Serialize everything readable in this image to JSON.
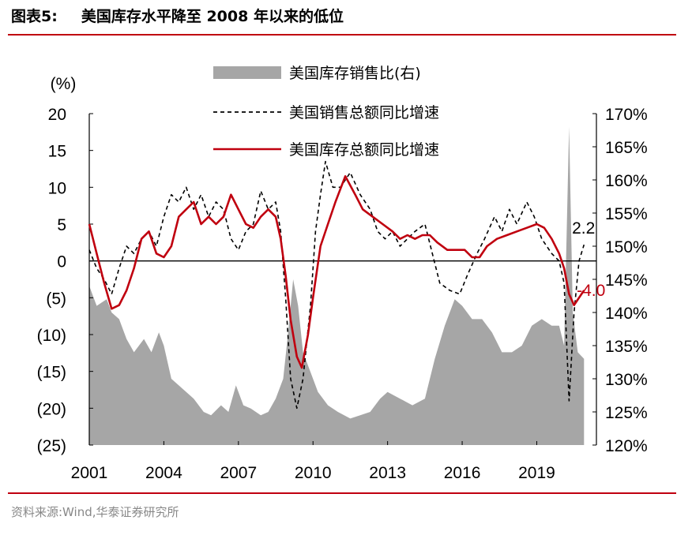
{
  "figure": {
    "title_prefix": "图表5:",
    "title": "美国库存水平降至 2008 年以来的低位",
    "source": "资料来源:Wind,华泰证券研究所"
  },
  "colors": {
    "rule": "#c0000f",
    "ratio_area": "#a6a6a6",
    "sales_line": "#000000",
    "inventory_line": "#c0000f",
    "axis": "#000000"
  },
  "chart_data": {
    "type": "line",
    "title": "",
    "left_axis": {
      "unit_label": "(%)",
      "min": -25,
      "max": 20,
      "ticks": [
        20,
        15,
        10,
        5,
        0,
        -5,
        -10,
        -15,
        -20,
        -25
      ],
      "tick_labels": [
        "20",
        "15",
        "10",
        "5",
        "0",
        "(5)",
        "(10)",
        "(15)",
        "(20)",
        "(25)"
      ]
    },
    "right_axis": {
      "min": 120,
      "max": 170,
      "ticks": [
        170,
        165,
        160,
        155,
        150,
        145,
        140,
        135,
        130,
        125,
        120
      ],
      "tick_labels": [
        "170%",
        "165%",
        "160%",
        "155%",
        "150%",
        "145%",
        "140%",
        "135%",
        "130%",
        "125%",
        "120%"
      ]
    },
    "x_axis": {
      "min": 2001.0,
      "max": 2021.4,
      "ticks": [
        2001,
        2004,
        2007,
        2010,
        2013,
        2016,
        2019
      ],
      "tick_labels": [
        "2001",
        "2004",
        "2007",
        "2010",
        "2013",
        "2016",
        "2019"
      ]
    },
    "legend": {
      "position": "top-center",
      "entries": [
        "美国库存销售比(右)",
        "美国销售总额同比增速",
        "美国库存总额同比增速"
      ]
    },
    "annotations": [
      {
        "text": "2.2",
        "x": 2020.8,
        "y": 2.2,
        "series": "美国销售总额同比增速"
      },
      {
        "text": "-4.0",
        "x": 2020.8,
        "y": -4.0,
        "series": "美国库存总额同比增速"
      }
    ],
    "series": [
      {
        "name": "美国库存销售比(右)",
        "axis": "right",
        "kind": "area",
        "points": [
          [
            2001.0,
            144
          ],
          [
            2001.3,
            141
          ],
          [
            2001.7,
            142
          ],
          [
            2001.9,
            140
          ],
          [
            2002.2,
            139
          ],
          [
            2002.5,
            136
          ],
          [
            2002.8,
            134
          ],
          [
            2003.2,
            136
          ],
          [
            2003.5,
            134
          ],
          [
            2003.8,
            137
          ],
          [
            2004.0,
            135
          ],
          [
            2004.3,
            130
          ],
          [
            2004.6,
            129
          ],
          [
            2004.9,
            128
          ],
          [
            2005.2,
            127
          ],
          [
            2005.6,
            125
          ],
          [
            2005.9,
            124.5
          ],
          [
            2006.3,
            126
          ],
          [
            2006.6,
            125
          ],
          [
            2006.9,
            129
          ],
          [
            2007.2,
            126
          ],
          [
            2007.5,
            125.5
          ],
          [
            2007.9,
            124.5
          ],
          [
            2008.2,
            125
          ],
          [
            2008.5,
            127
          ],
          [
            2008.8,
            130
          ],
          [
            2009.0,
            137
          ],
          [
            2009.2,
            145
          ],
          [
            2009.4,
            141
          ],
          [
            2009.6,
            134
          ],
          [
            2009.9,
            131
          ],
          [
            2010.2,
            128
          ],
          [
            2010.6,
            126
          ],
          [
            2011.0,
            125
          ],
          [
            2011.5,
            124
          ],
          [
            2011.9,
            124.5
          ],
          [
            2012.3,
            125
          ],
          [
            2012.7,
            127
          ],
          [
            2013.0,
            128
          ],
          [
            2013.5,
            127
          ],
          [
            2014.0,
            126
          ],
          [
            2014.5,
            127
          ],
          [
            2014.9,
            133
          ],
          [
            2015.3,
            138
          ],
          [
            2015.7,
            142
          ],
          [
            2016.0,
            141
          ],
          [
            2016.4,
            139
          ],
          [
            2016.8,
            139
          ],
          [
            2017.2,
            137
          ],
          [
            2017.6,
            134
          ],
          [
            2018.0,
            134
          ],
          [
            2018.4,
            135
          ],
          [
            2018.8,
            138
          ],
          [
            2019.2,
            139
          ],
          [
            2019.6,
            138
          ],
          [
            2019.9,
            138
          ],
          [
            2020.1,
            135
          ],
          [
            2020.3,
            168
          ],
          [
            2020.45,
            140
          ],
          [
            2020.65,
            134
          ],
          [
            2020.9,
            133
          ]
        ]
      },
      {
        "name": "美国销售总额同比增速",
        "axis": "left",
        "kind": "line",
        "style": "dashed",
        "points": [
          [
            2001.0,
            1.5
          ],
          [
            2001.3,
            -1
          ],
          [
            2001.6,
            -2.5
          ],
          [
            2001.9,
            -4.5
          ],
          [
            2002.2,
            -1
          ],
          [
            2002.5,
            2
          ],
          [
            2002.8,
            1
          ],
          [
            2003.1,
            3
          ],
          [
            2003.4,
            4
          ],
          [
            2003.7,
            2
          ],
          [
            2004.0,
            6
          ],
          [
            2004.3,
            9
          ],
          [
            2004.6,
            8
          ],
          [
            2004.9,
            10
          ],
          [
            2005.2,
            7
          ],
          [
            2005.5,
            9
          ],
          [
            2005.8,
            6
          ],
          [
            2006.1,
            8
          ],
          [
            2006.4,
            7
          ],
          [
            2006.7,
            3
          ],
          [
            2007.0,
            1.5
          ],
          [
            2007.3,
            4
          ],
          [
            2007.6,
            5
          ],
          [
            2007.9,
            9.5
          ],
          [
            2008.2,
            7
          ],
          [
            2008.5,
            8
          ],
          [
            2008.7,
            4
          ],
          [
            2008.9,
            -5
          ],
          [
            2009.1,
            -16
          ],
          [
            2009.35,
            -20
          ],
          [
            2009.6,
            -16
          ],
          [
            2009.9,
            -6
          ],
          [
            2010.1,
            4
          ],
          [
            2010.3,
            9
          ],
          [
            2010.5,
            13.5
          ],
          [
            2010.8,
            10
          ],
          [
            2011.1,
            10
          ],
          [
            2011.5,
            12
          ],
          [
            2011.9,
            9
          ],
          [
            2012.3,
            7
          ],
          [
            2012.6,
            4
          ],
          [
            2012.9,
            3
          ],
          [
            2013.2,
            4
          ],
          [
            2013.5,
            2
          ],
          [
            2013.8,
            3
          ],
          [
            2014.1,
            4
          ],
          [
            2014.5,
            5
          ],
          [
            2014.8,
            1
          ],
          [
            2015.1,
            -3
          ],
          [
            2015.5,
            -4
          ],
          [
            2015.9,
            -4.5
          ],
          [
            2016.2,
            -2
          ],
          [
            2016.6,
            1
          ],
          [
            2016.9,
            3
          ],
          [
            2017.3,
            6
          ],
          [
            2017.6,
            4
          ],
          [
            2017.9,
            7
          ],
          [
            2018.2,
            5
          ],
          [
            2018.6,
            8
          ],
          [
            2018.9,
            6
          ],
          [
            2019.2,
            3
          ],
          [
            2019.6,
            1
          ],
          [
            2019.9,
            0
          ],
          [
            2020.1,
            -3
          ],
          [
            2020.3,
            -19
          ],
          [
            2020.5,
            -7
          ],
          [
            2020.7,
            0
          ],
          [
            2020.9,
            2.2
          ]
        ]
      },
      {
        "name": "美国库存总额同比增速",
        "axis": "left",
        "kind": "line",
        "style": "solid",
        "points": [
          [
            2001.0,
            5
          ],
          [
            2001.3,
            1
          ],
          [
            2001.6,
            -3
          ],
          [
            2001.9,
            -6.5
          ],
          [
            2002.2,
            -6
          ],
          [
            2002.5,
            -4
          ],
          [
            2002.8,
            -1
          ],
          [
            2003.1,
            3
          ],
          [
            2003.4,
            4
          ],
          [
            2003.7,
            1
          ],
          [
            2004.0,
            0.5
          ],
          [
            2004.3,
            2
          ],
          [
            2004.6,
            6
          ],
          [
            2004.9,
            7
          ],
          [
            2005.2,
            8
          ],
          [
            2005.5,
            5
          ],
          [
            2005.8,
            6
          ],
          [
            2006.1,
            5
          ],
          [
            2006.4,
            6
          ],
          [
            2006.7,
            9
          ],
          [
            2007.0,
            7
          ],
          [
            2007.3,
            5
          ],
          [
            2007.6,
            4.5
          ],
          [
            2007.9,
            6
          ],
          [
            2008.2,
            7
          ],
          [
            2008.5,
            6
          ],
          [
            2008.7,
            3
          ],
          [
            2008.9,
            -2
          ],
          [
            2009.1,
            -8
          ],
          [
            2009.35,
            -13
          ],
          [
            2009.55,
            -14.5
          ],
          [
            2009.8,
            -10
          ],
          [
            2010.0,
            -5
          ],
          [
            2010.3,
            2
          ],
          [
            2010.6,
            5
          ],
          [
            2010.9,
            8
          ],
          [
            2011.3,
            11.5
          ],
          [
            2011.7,
            9
          ],
          [
            2012.0,
            7
          ],
          [
            2012.4,
            6
          ],
          [
            2012.8,
            5
          ],
          [
            2013.2,
            4
          ],
          [
            2013.5,
            3
          ],
          [
            2013.8,
            3.5
          ],
          [
            2014.1,
            3
          ],
          [
            2014.4,
            3.5
          ],
          [
            2014.7,
            3.5
          ],
          [
            2015.0,
            2.5
          ],
          [
            2015.4,
            1.5
          ],
          [
            2015.8,
            1.5
          ],
          [
            2016.1,
            1.5
          ],
          [
            2016.4,
            0.5
          ],
          [
            2016.7,
            0.5
          ],
          [
            2017.0,
            2
          ],
          [
            2017.4,
            3
          ],
          [
            2017.8,
            3.5
          ],
          [
            2018.2,
            4
          ],
          [
            2018.6,
            4.5
          ],
          [
            2019.0,
            5
          ],
          [
            2019.3,
            4.5
          ],
          [
            2019.6,
            3
          ],
          [
            2019.9,
            1
          ],
          [
            2020.1,
            -1
          ],
          [
            2020.3,
            -4.5
          ],
          [
            2020.5,
            -6
          ],
          [
            2020.7,
            -5
          ],
          [
            2020.9,
            -4.0
          ]
        ]
      }
    ]
  }
}
